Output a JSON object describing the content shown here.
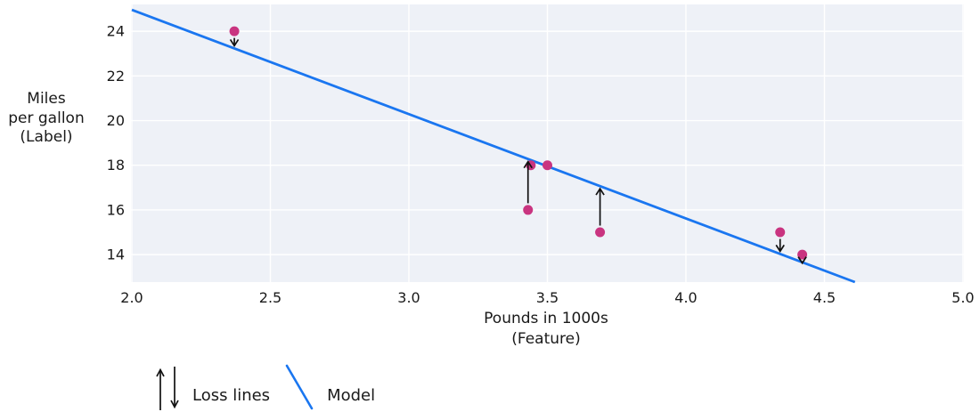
{
  "chart_data": {
    "type": "scatter",
    "title": "",
    "xlabel_lines": [
      "Pounds in 1000s",
      "(Feature)"
    ],
    "ylabel_lines": [
      "Miles",
      "per gallon",
      "(Label)"
    ],
    "xlim": [
      2.0,
      5.0
    ],
    "ylim": [
      12.77,
      25.2
    ],
    "grid": true,
    "x_ticks": [
      2.0,
      2.5,
      3.0,
      3.5,
      4.0,
      4.5,
      5.0
    ],
    "x_tick_labels": [
      "2.0",
      "2.5",
      "3.0",
      "3.5",
      "4.0",
      "4.5",
      "5.0"
    ],
    "y_ticks": [
      14,
      16,
      18,
      20,
      22,
      24
    ],
    "y_tick_labels": [
      "14",
      "16",
      "18",
      "20",
      "22",
      "24"
    ],
    "points": [
      {
        "x": 2.37,
        "y": 24
      },
      {
        "x": 3.43,
        "y": 16
      },
      {
        "x": 3.44,
        "y": 18
      },
      {
        "x": 3.5,
        "y": 18
      },
      {
        "x": 3.69,
        "y": 15
      },
      {
        "x": 4.34,
        "y": 15
      },
      {
        "x": 4.42,
        "y": 14
      }
    ],
    "model_line": {
      "x": [
        2.0,
        4.61
      ],
      "y": [
        24.96,
        12.77
      ],
      "slope": -4.67,
      "intercept": 34.3
    },
    "loss_arrows": [
      {
        "x": 2.37,
        "from": 24,
        "to": 23.23,
        "direction": "down"
      },
      {
        "x": 3.43,
        "from": 16,
        "to": 18.28,
        "direction": "up"
      },
      {
        "x": 3.69,
        "from": 15,
        "to": 17.07,
        "direction": "up"
      },
      {
        "x": 4.34,
        "from": 15,
        "to": 14.03,
        "direction": "down"
      },
      {
        "x": 4.42,
        "from": 14,
        "to": 13.66,
        "direction": "down"
      }
    ],
    "legend": [
      {
        "label": "Loss lines",
        "symbol": "loss-arrows"
      },
      {
        "label": "Model",
        "symbol": "model-line"
      }
    ],
    "legend_position": "bottom-left",
    "colors": {
      "point": "#c93480",
      "model_line": "#1a76f0",
      "plot_bg": "#eef1f7",
      "grid": "#ffffff",
      "arrow": "#111111",
      "text": "#1a1a1a"
    }
  }
}
